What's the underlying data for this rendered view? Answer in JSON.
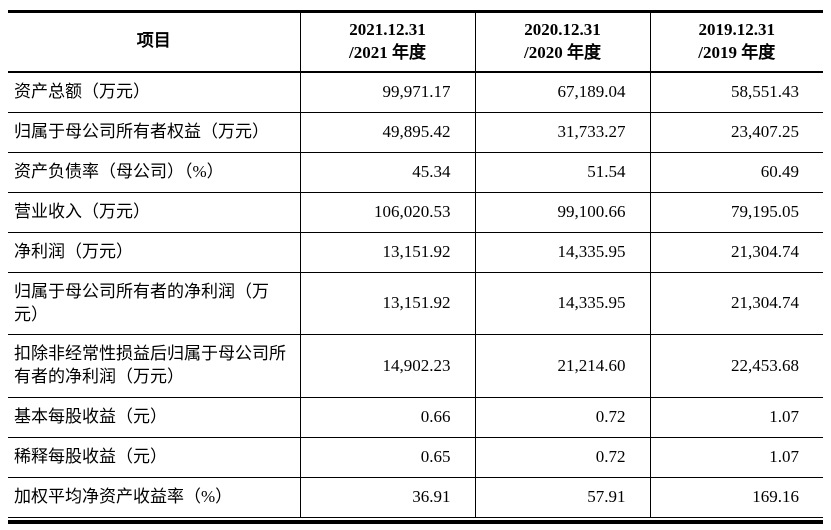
{
  "colors": {
    "background": "#ffffff",
    "text": "#000000",
    "border": "#000000"
  },
  "table": {
    "header": {
      "item_col": "项目",
      "periods": [
        {
          "line1": "2021.12.31",
          "line2": "/2021 年度"
        },
        {
          "line1": "2020.12.31",
          "line2": "/2020 年度"
        },
        {
          "line1": "2019.12.31",
          "line2": "/2019 年度"
        }
      ]
    },
    "rows": [
      {
        "label": "资产总额（万元）",
        "values": [
          "99,971.17",
          "67,189.04",
          "58,551.43"
        ]
      },
      {
        "label": "归属于母公司所有者权益（万元）",
        "values": [
          "49,895.42",
          "31,733.27",
          "23,407.25"
        ]
      },
      {
        "label": "资产负债率（母公司）（%）",
        "values": [
          "45.34",
          "51.54",
          "60.49"
        ]
      },
      {
        "label": "营业收入（万元）",
        "values": [
          "106,020.53",
          "99,100.66",
          "79,195.05"
        ]
      },
      {
        "label": "净利润（万元）",
        "values": [
          "13,151.92",
          "14,335.95",
          "21,304.74"
        ]
      },
      {
        "label": "归属于母公司所有者的净利润（万元）",
        "values": [
          "13,151.92",
          "14,335.95",
          "21,304.74"
        ]
      },
      {
        "label": "扣除非经常性损益后归属于母公司所有者的净利润（万元）",
        "values": [
          "14,902.23",
          "21,214.60",
          "22,453.68"
        ]
      },
      {
        "label": "基本每股收益（元）",
        "values": [
          "0.66",
          "0.72",
          "1.07"
        ]
      },
      {
        "label": "稀释每股收益（元）",
        "values": [
          "0.65",
          "0.72",
          "1.07"
        ]
      },
      {
        "label": "加权平均净资产收益率（%）",
        "values": [
          "36.91",
          "57.91",
          "169.16"
        ]
      }
    ]
  }
}
